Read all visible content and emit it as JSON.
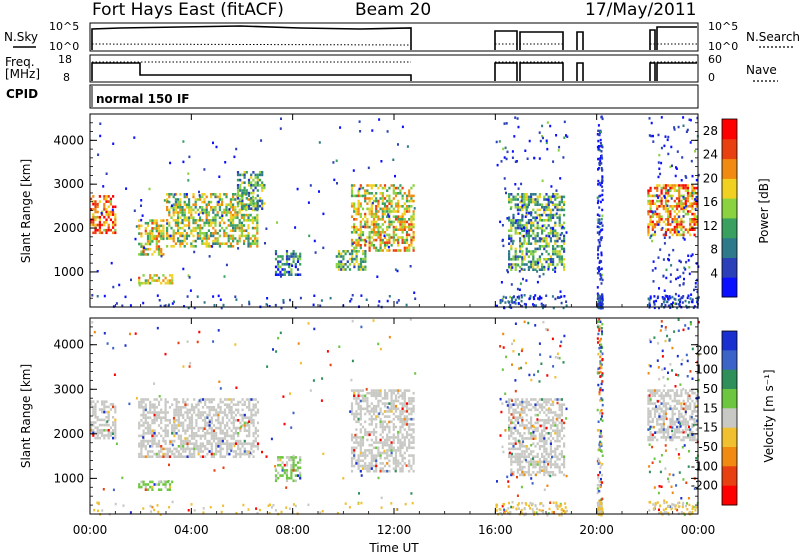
{
  "header": {
    "radar": "Fort Hays East (fitACF)",
    "beam": "Beam 20",
    "date": "17/May/2011"
  },
  "top_panels": {
    "nsky_label": "N.Sky",
    "nsky_ticks": [
      "10^5",
      "10^0"
    ],
    "nsearch_label": "N.Search",
    "nsearch_ticks": [
      "10^5",
      "10^0"
    ],
    "freq_label_1": "Freq.",
    "freq_label_2": "[MHz]",
    "freq_ticks": [
      "18",
      "8"
    ],
    "nave_label": "Nave",
    "nave_ticks": [
      "60",
      "0"
    ],
    "cpid_label": "CPID",
    "cpid_value": "normal 150 IF"
  },
  "colors": {
    "power_scale": [
      "#0a10ff",
      "#2a3fb8",
      "#2e7a8a",
      "#3aa060",
      "#8ad240",
      "#f0d020",
      "#f08a10",
      "#e84010",
      "#ff0000"
    ],
    "velocity_scale": [
      "#1a2fd0",
      "#3b63c8",
      "#2e8f5a",
      "#6cc640",
      "#c8c8c4",
      "#f0c030",
      "#f08a10",
      "#e84010",
      "#ff0000"
    ]
  },
  "chart_data": [
    {
      "type": "heatmap",
      "title": "",
      "xlabel": "Time UT",
      "ylabel": "Slant Range [km]",
      "xlim": [
        0,
        24
      ],
      "ylim": [
        200,
        4600
      ],
      "x_tick_labels": [
        "00:00",
        "04:00",
        "08:00",
        "12:00",
        "16:00",
        "20:00",
        "00:00"
      ],
      "y_tick_labels": [
        "1000",
        "2000",
        "3000",
        "4000"
      ],
      "colorbar": {
        "label": "Power [dB]",
        "tick_labels": [
          "4",
          "8",
          "12",
          "16",
          "20",
          "24",
          "28"
        ],
        "range": [
          0,
          30
        ]
      },
      "data_windows": [
        [
          0,
          12.9
        ],
        [
          16.0,
          18.8
        ],
        [
          20.0,
          20.2
        ],
        [
          22.0,
          24.0
        ]
      ],
      "echo_regions": [
        {
          "t": [
            0.0,
            1.1
          ],
          "range_km": [
            1850,
            2750
          ],
          "power_db": 24
        },
        {
          "t": [
            1.9,
            3.0
          ],
          "range_km": [
            1350,
            2200
          ],
          "power_db": 18
        },
        {
          "t": [
            3.0,
            6.7
          ],
          "range_km": [
            1500,
            2800
          ],
          "power_db": 16
        },
        {
          "t": [
            1.9,
            3.3
          ],
          "range_km": [
            700,
            950
          ],
          "power_db": 17
        },
        {
          "t": [
            5.8,
            7.0
          ],
          "range_km": [
            2400,
            3300
          ],
          "power_db": 10
        },
        {
          "t": [
            7.3,
            8.4
          ],
          "range_km": [
            900,
            1500
          ],
          "power_db": 6
        },
        {
          "t": [
            10.3,
            12.9
          ],
          "range_km": [
            1400,
            3000
          ],
          "power_db": 18
        },
        {
          "t": [
            9.7,
            11.0
          ],
          "range_km": [
            1000,
            1500
          ],
          "power_db": 12
        },
        {
          "t": [
            16.5,
            18.8
          ],
          "range_km": [
            1000,
            2800
          ],
          "power_db": 12
        },
        {
          "t": [
            22.0,
            24.0
          ],
          "range_km": [
            1800,
            3000
          ],
          "power_db": 22
        }
      ]
    },
    {
      "type": "heatmap",
      "title": "",
      "xlabel": "Time UT",
      "ylabel": "Slant Range [km]",
      "xlim": [
        0,
        24
      ],
      "ylim": [
        200,
        4600
      ],
      "x_tick_labels": [
        "00:00",
        "04:00",
        "08:00",
        "12:00",
        "16:00",
        "20:00",
        "00:00"
      ],
      "y_tick_labels": [
        "1000",
        "2000",
        "3000",
        "4000"
      ],
      "colorbar": {
        "label": "Velocity [m s⁻¹]",
        "tick_labels": [
          "200",
          "100",
          "50",
          "15",
          "-15",
          "-50",
          "-100",
          "-200"
        ],
        "range": [
          -250,
          250
        ]
      },
      "echo_regions": [
        {
          "t": [
            0.0,
            1.1
          ],
          "range_km": [
            1850,
            2750
          ],
          "velocity_ms": 0
        },
        {
          "t": [
            1.9,
            6.7
          ],
          "range_km": [
            1400,
            2800
          ],
          "velocity_ms": 0
        },
        {
          "t": [
            1.9,
            3.3
          ],
          "range_km": [
            700,
            950
          ],
          "velocity_ms": 40
        },
        {
          "t": [
            7.3,
            8.4
          ],
          "range_km": [
            900,
            1500
          ],
          "velocity_ms": 40
        },
        {
          "t": [
            10.3,
            12.9
          ],
          "range_km": [
            1100,
            3000
          ],
          "velocity_ms": 0
        },
        {
          "t": [
            16.5,
            18.8
          ],
          "range_km": [
            1000,
            2800
          ],
          "velocity_ms": 0
        },
        {
          "t": [
            22.0,
            24.0
          ],
          "range_km": [
            1800,
            3000
          ],
          "velocity_ms": 0
        }
      ]
    }
  ]
}
